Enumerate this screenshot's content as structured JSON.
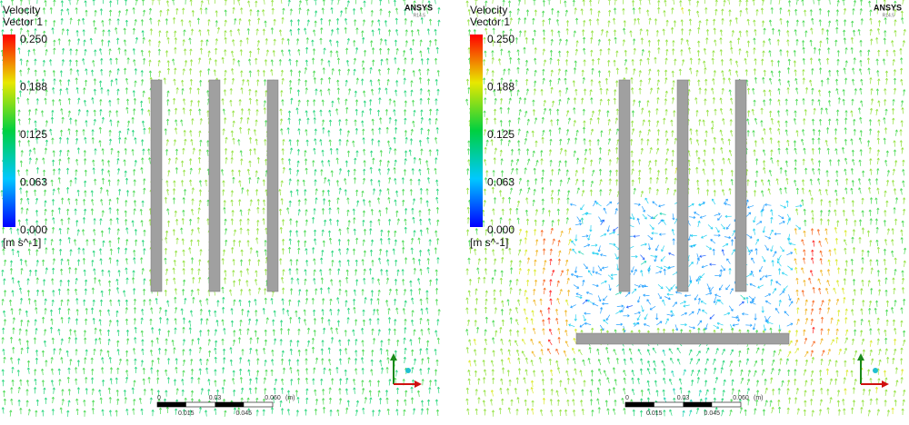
{
  "panels": [
    {
      "legend": {
        "title": "Velocity",
        "subtitle": "Vector 1",
        "ticks": [
          "0.250",
          "0.188",
          "0.125",
          "0.063",
          "0.000"
        ],
        "unit": "[m s^-1]"
      },
      "logo": "ANSYS",
      "version": "R14.5",
      "scale": {
        "top": [
          "0",
          "0.03",
          "0.060"
        ],
        "unit": "(m)",
        "bottom": [
          "0.015",
          "0.045"
        ]
      }
    },
    {
      "legend": {
        "title": "Velocity",
        "subtitle": "Vector 1",
        "ticks": [
          "0.250",
          "0.188",
          "0.125",
          "0.063",
          "0.000"
        ],
        "unit": "[m s^-1]"
      },
      "logo": "ANSYS",
      "version": "R14.5",
      "scale": {
        "top": [
          "0",
          "0.03",
          "0.060"
        ],
        "unit": "(m)",
        "bottom": [
          "0.015",
          "0.045"
        ]
      }
    }
  ]
}
